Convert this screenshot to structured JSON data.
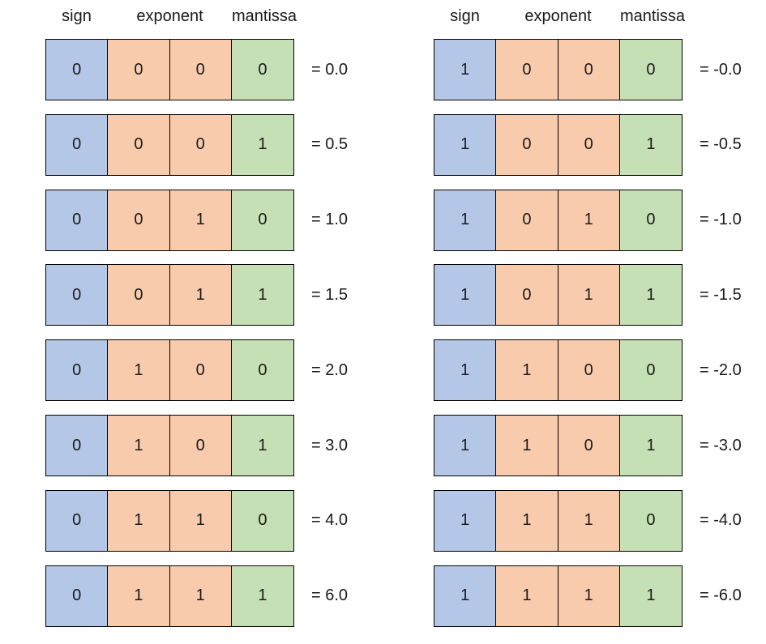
{
  "colors": {
    "sign": "#b4c7e7",
    "exponent": "#f8cbad",
    "mantissa": "#c5e0b4"
  },
  "headers": {
    "sign": "sign",
    "exponent": "exponent",
    "mantissa": "mantissa"
  },
  "positive": [
    {
      "bits": [
        "0",
        "0",
        "0",
        "0"
      ],
      "value": "= 0.0"
    },
    {
      "bits": [
        "0",
        "0",
        "0",
        "1"
      ],
      "value": "= 0.5"
    },
    {
      "bits": [
        "0",
        "0",
        "1",
        "0"
      ],
      "value": "= 1.0"
    },
    {
      "bits": [
        "0",
        "0",
        "1",
        "1"
      ],
      "value": "= 1.5"
    },
    {
      "bits": [
        "0",
        "1",
        "0",
        "0"
      ],
      "value": "= 2.0"
    },
    {
      "bits": [
        "0",
        "1",
        "0",
        "1"
      ],
      "value": "= 3.0"
    },
    {
      "bits": [
        "0",
        "1",
        "1",
        "0"
      ],
      "value": "= 4.0"
    },
    {
      "bits": [
        "0",
        "1",
        "1",
        "1"
      ],
      "value": "= 6.0"
    }
  ],
  "negative": [
    {
      "bits": [
        "1",
        "0",
        "0",
        "0"
      ],
      "value": "= -0.0"
    },
    {
      "bits": [
        "1",
        "0",
        "0",
        "1"
      ],
      "value": "= -0.5"
    },
    {
      "bits": [
        "1",
        "0",
        "1",
        "0"
      ],
      "value": "= -1.0"
    },
    {
      "bits": [
        "1",
        "0",
        "1",
        "1"
      ],
      "value": "= -1.5"
    },
    {
      "bits": [
        "1",
        "1",
        "0",
        "0"
      ],
      "value": "= -2.0"
    },
    {
      "bits": [
        "1",
        "1",
        "0",
        "1"
      ],
      "value": "= -3.0"
    },
    {
      "bits": [
        "1",
        "1",
        "1",
        "0"
      ],
      "value": "= -4.0"
    },
    {
      "bits": [
        "1",
        "1",
        "1",
        "1"
      ],
      "value": "= -6.0"
    }
  ]
}
